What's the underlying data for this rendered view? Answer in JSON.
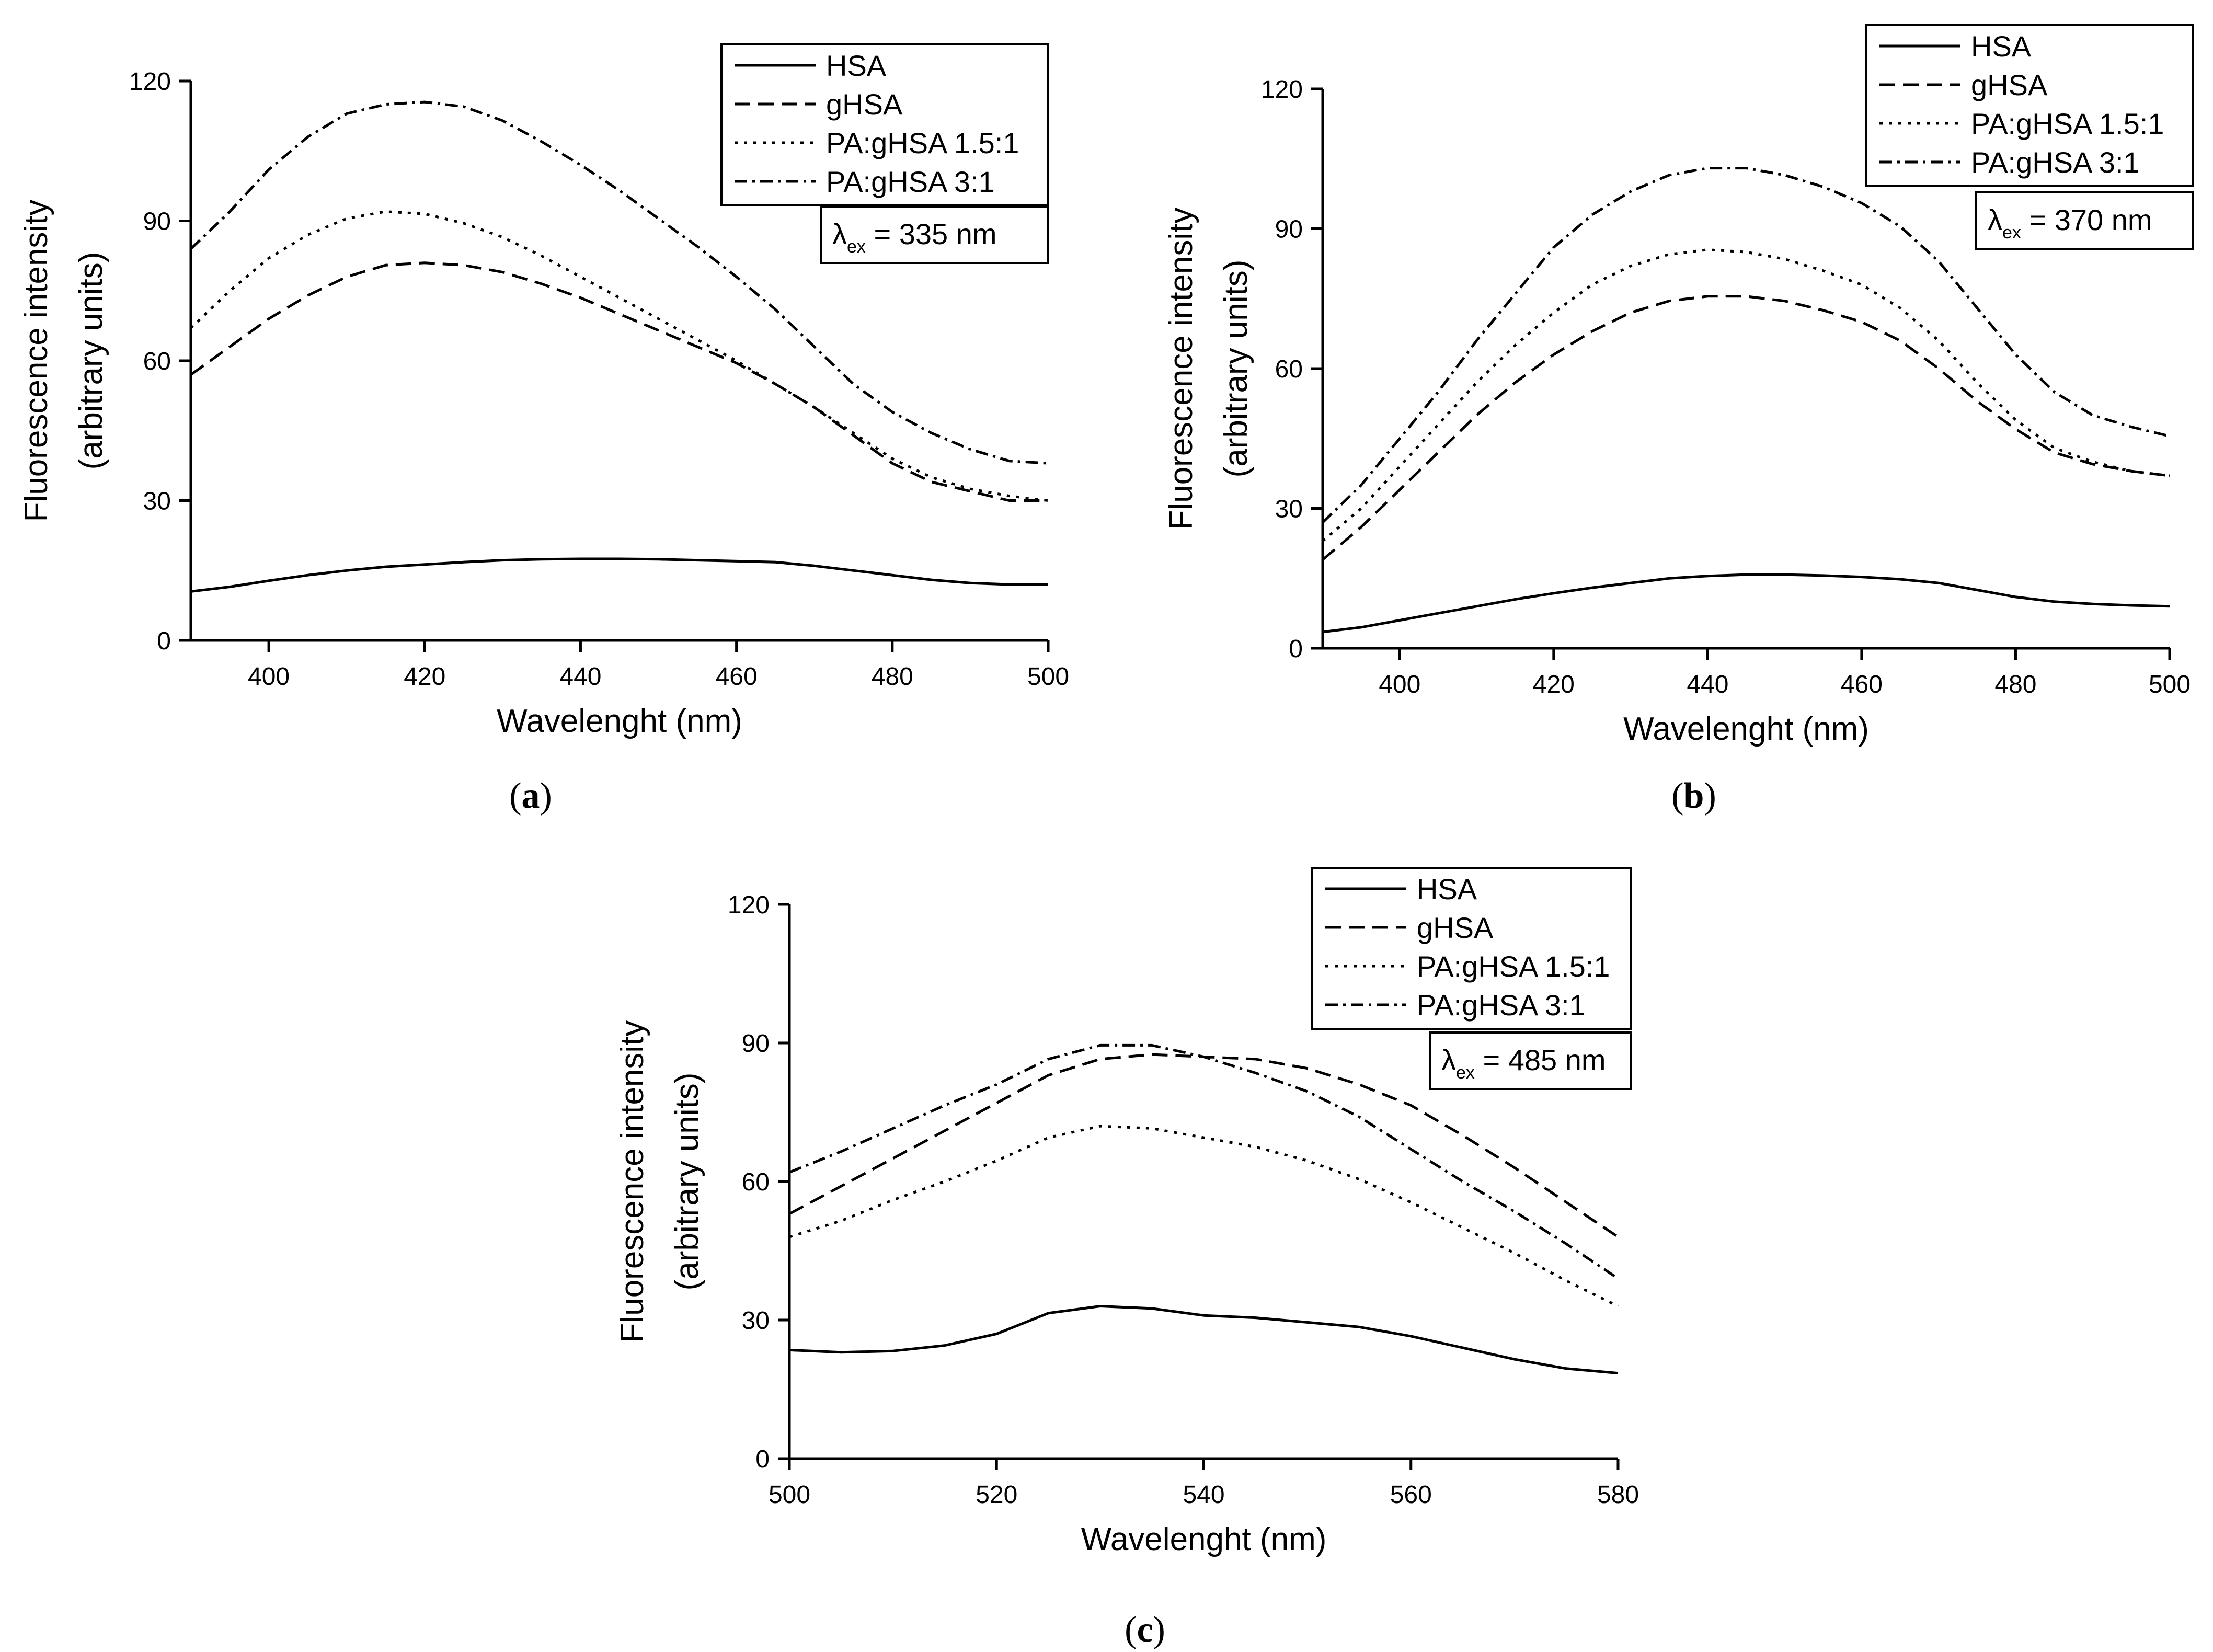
{
  "chart_data": [
    {
      "type": "line",
      "panel": "a",
      "caption_prefix": "(",
      "caption_letter": "a",
      "caption_suffix": ")",
      "ylabel_line1": "Fluorescence intensity",
      "ylabel_line2": "(arbitrary units)",
      "xlabel": "Wavelenght (nm)",
      "xlim": [
        390,
        500
      ],
      "ylim": [
        0,
        120
      ],
      "xticks": [
        400,
        420,
        440,
        460,
        480,
        500
      ],
      "yticks": [
        0,
        30,
        60,
        90,
        120
      ],
      "legend_position": "top-right",
      "annotation": {
        "symbol": "λ",
        "subscript": "ex",
        "text": " = 335 nm"
      },
      "x": [
        390,
        395,
        400,
        405,
        410,
        415,
        420,
        425,
        430,
        435,
        440,
        445,
        450,
        455,
        460,
        465,
        470,
        475,
        480,
        485,
        490,
        495,
        500
      ],
      "series": [
        {
          "name": "HSA",
          "style": "solid",
          "values": [
            10.5,
            11.5,
            12.8,
            14.0,
            15.0,
            15.8,
            16.3,
            16.8,
            17.2,
            17.4,
            17.5,
            17.5,
            17.4,
            17.2,
            17.0,
            16.8,
            16.0,
            15.0,
            14.0,
            13.0,
            12.3,
            12.0,
            12.0
          ]
        },
        {
          "name": "gHSA",
          "style": "dashed",
          "values": [
            57,
            63,
            69,
            74,
            78,
            80.5,
            81,
            80.5,
            79,
            76.5,
            73.5,
            70,
            66.5,
            63,
            59.5,
            55,
            50,
            44,
            38,
            34,
            32,
            30,
            30
          ]
        },
        {
          "name": "PA:gHSA 1.5:1",
          "style": "dotted",
          "values": [
            67,
            75,
            82,
            87,
            90.5,
            92,
            91.5,
            89.5,
            86.5,
            82.5,
            78,
            73.5,
            69,
            64.5,
            60,
            55,
            50,
            44.5,
            39,
            35,
            32.5,
            31,
            30
          ]
        },
        {
          "name": "PA:gHSA 3:1",
          "style": "dashdot",
          "values": [
            84,
            92,
            101,
            108,
            113,
            115,
            115.5,
            114.5,
            111.5,
            107,
            102,
            96.5,
            90.5,
            84.5,
            78,
            71,
            63,
            55,
            49,
            44.5,
            41,
            38.5,
            38
          ]
        }
      ]
    },
    {
      "type": "line",
      "panel": "b",
      "caption_prefix": "(",
      "caption_letter": "b",
      "caption_suffix": ")",
      "ylabel_line1": "Fluorescence intensity",
      "ylabel_line2": "(arbitrary units)",
      "xlabel": "Wavelenght (nm)",
      "xlim": [
        390,
        500
      ],
      "ylim": [
        0,
        120
      ],
      "xticks": [
        400,
        420,
        440,
        460,
        480,
        500
      ],
      "yticks": [
        0,
        30,
        60,
        90,
        120
      ],
      "legend_position": "top-right",
      "annotation": {
        "symbol": "λ",
        "subscript": "ex",
        "text": " = 370 nm"
      },
      "x": [
        390,
        395,
        400,
        405,
        410,
        415,
        420,
        425,
        430,
        435,
        440,
        445,
        450,
        455,
        460,
        465,
        470,
        475,
        480,
        485,
        490,
        495,
        500
      ],
      "series": [
        {
          "name": "HSA",
          "style": "solid",
          "values": [
            3.5,
            4.5,
            6.0,
            7.5,
            9.0,
            10.5,
            11.8,
            13.0,
            14.0,
            15.0,
            15.5,
            15.8,
            15.8,
            15.6,
            15.3,
            14.8,
            14.0,
            12.5,
            11.0,
            10.0,
            9.5,
            9.2,
            9.0
          ]
        },
        {
          "name": "gHSA",
          "style": "dashed",
          "values": [
            19,
            26,
            34,
            42,
            50,
            57,
            63,
            68,
            72,
            74.5,
            75.5,
            75.5,
            74.5,
            72.5,
            70,
            66,
            60,
            53,
            47,
            42,
            39.5,
            38,
            37
          ]
        },
        {
          "name": "PA:gHSA 1.5:1",
          "style": "dotted",
          "values": [
            23,
            30,
            39,
            48,
            57,
            65,
            72,
            78,
            82,
            84.5,
            85.5,
            85,
            83.5,
            81,
            78,
            73,
            66,
            57,
            49,
            43,
            40,
            38,
            37
          ]
        },
        {
          "name": "PA:gHSA 3:1",
          "style": "dashdot",
          "values": [
            27,
            35,
            45,
            55,
            66,
            76,
            86,
            93,
            98,
            101.5,
            103,
            103,
            101.5,
            99,
            95.5,
            90.5,
            83,
            73,
            63,
            55,
            50,
            47.5,
            45.5
          ]
        }
      ]
    },
    {
      "type": "line",
      "panel": "c",
      "caption_prefix": "(",
      "caption_letter": "c",
      "caption_suffix": ")",
      "ylabel_line1": "Fluorescence intensity",
      "ylabel_line2": "(arbitrary units)",
      "xlabel": "Wavelenght (nm)",
      "xlim": [
        500,
        580
      ],
      "ylim": [
        0,
        120
      ],
      "xticks": [
        500,
        520,
        540,
        560,
        580
      ],
      "yticks": [
        0,
        30,
        60,
        90,
        120
      ],
      "legend_position": "top-right",
      "annotation": {
        "symbol": "λ",
        "subscript": "ex",
        "text": " = 485 nm"
      },
      "x": [
        500,
        505,
        510,
        515,
        520,
        525,
        530,
        535,
        540,
        545,
        550,
        555,
        560,
        565,
        570,
        575,
        580
      ],
      "series": [
        {
          "name": "HSA",
          "style": "solid",
          "values": [
            23.5,
            23,
            23.3,
            24.5,
            27,
            31.5,
            33,
            32.5,
            31,
            30.5,
            29.5,
            28.5,
            26.5,
            24,
            21.5,
            19.5,
            18.5
          ]
        },
        {
          "name": "gHSA",
          "style": "dashed",
          "values": [
            53,
            59,
            65,
            71,
            77,
            83,
            86.5,
            87.5,
            87,
            86.5,
            84.5,
            81,
            76.5,
            70,
            63,
            55.5,
            48
          ]
        },
        {
          "name": "PA:gHSA 1.5:1",
          "style": "dotted",
          "values": [
            48,
            51.5,
            56,
            60,
            64.5,
            69.5,
            72,
            71.5,
            69.5,
            67.5,
            64.5,
            60.5,
            55.5,
            50,
            44.5,
            38.5,
            33
          ]
        },
        {
          "name": "PA:gHSA 3:1",
          "style": "dashdot",
          "values": [
            62,
            66.5,
            71.5,
            76.5,
            81,
            86.5,
            89.5,
            89.5,
            87,
            83.5,
            79.5,
            74,
            67,
            60,
            53.5,
            46.5,
            39
          ]
        }
      ]
    }
  ]
}
